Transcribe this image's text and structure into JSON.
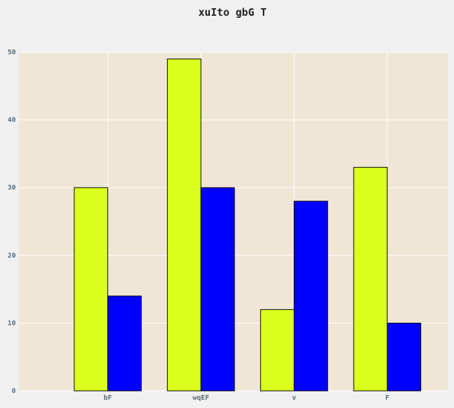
{
  "chart_data": {
    "type": "bar",
    "title": "xuIto gbG  T",
    "xlabel": "",
    "ylabel": "",
    "categories": [
      "bF",
      "wqEF",
      "v",
      "F"
    ],
    "series": [
      {
        "values": [
          30,
          49,
          12,
          33
        ],
        "color": "#dbff1f"
      },
      {
        "values": [
          14,
          30,
          28,
          10
        ],
        "color": "#0000ff"
      }
    ],
    "ylim": [
      0,
      50
    ],
    "yticks": [
      0,
      10,
      20,
      30,
      40,
      50
    ],
    "grid": true,
    "plot_background": "#efe6d6",
    "page_background": "#f0f0f0",
    "grid_color": "#ffffff",
    "bar_edge_color": "#000000"
  }
}
